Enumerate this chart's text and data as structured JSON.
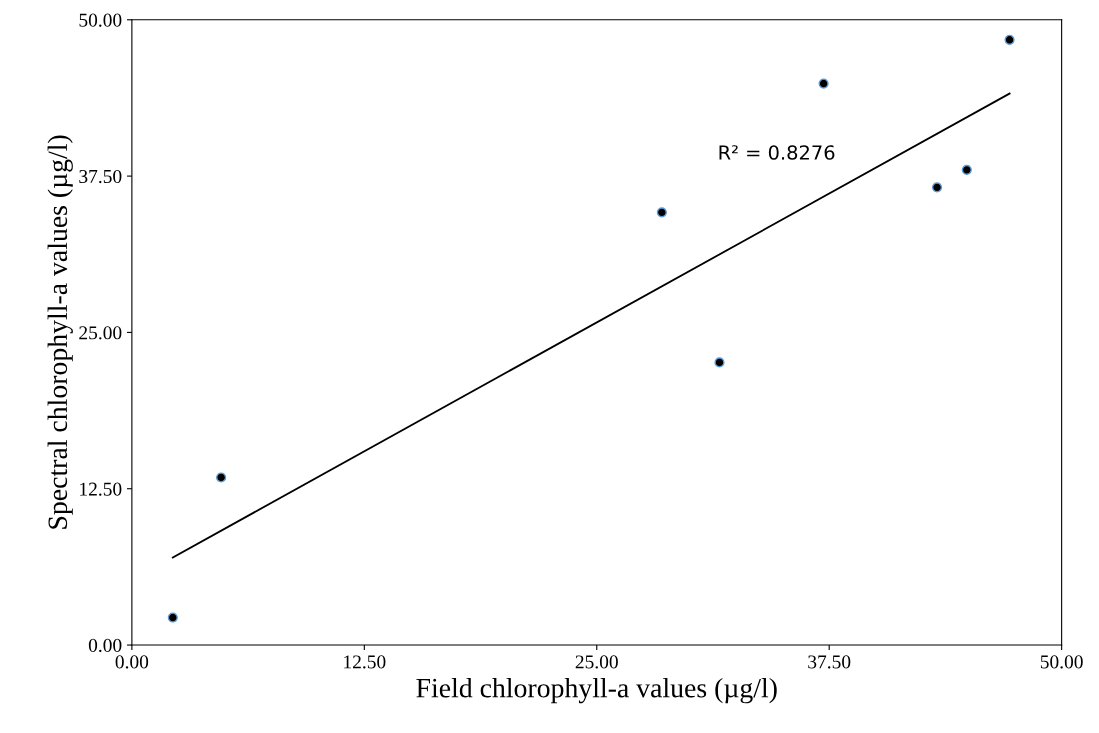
{
  "chart_data": {
    "type": "scatter",
    "xlabel": "Field chlorophyll-a values (µg/l)",
    "ylabel": "Spectral chlorophyll-a values (µg/l)",
    "xlim": [
      0,
      50
    ],
    "xticks": [
      {
        "value": 0,
        "label": "0.00"
      },
      {
        "value": 12.5,
        "label": "12.50"
      },
      {
        "value": 25,
        "label": "25.00"
      },
      {
        "value": 37.5,
        "label": "37.50"
      },
      {
        "value": 50,
        "label": "50.00"
      }
    ],
    "ylim": [
      0,
      50
    ],
    "yticks": [
      {
        "value": 0,
        "label": "0.00"
      },
      {
        "value": 12.5,
        "label": "12.50"
      },
      {
        "value": 25,
        "label": "25.00"
      },
      {
        "value": 37.5,
        "label": "37.50"
      },
      {
        "value": 50,
        "label": "50.00"
      }
    ],
    "grid": false,
    "legend": false,
    "series": [
      {
        "marker": "circle",
        "color": "#000000",
        "x": [
          2.2,
          4.8,
          28.5,
          31.6,
          37.2,
          43.3,
          44.9,
          47.2
        ],
        "values": [
          2.2,
          13.4,
          34.6,
          22.6,
          44.9,
          36.6,
          38.0,
          48.4
        ]
      },
      {
        "type": "line",
        "color": "#000000",
        "line_style": "solid",
        "x": [
          2.2,
          47.2
        ],
        "values": [
          7.0,
          44.1
        ]
      }
    ],
    "annotations": [
      "R² = 0.8276"
    ]
  }
}
